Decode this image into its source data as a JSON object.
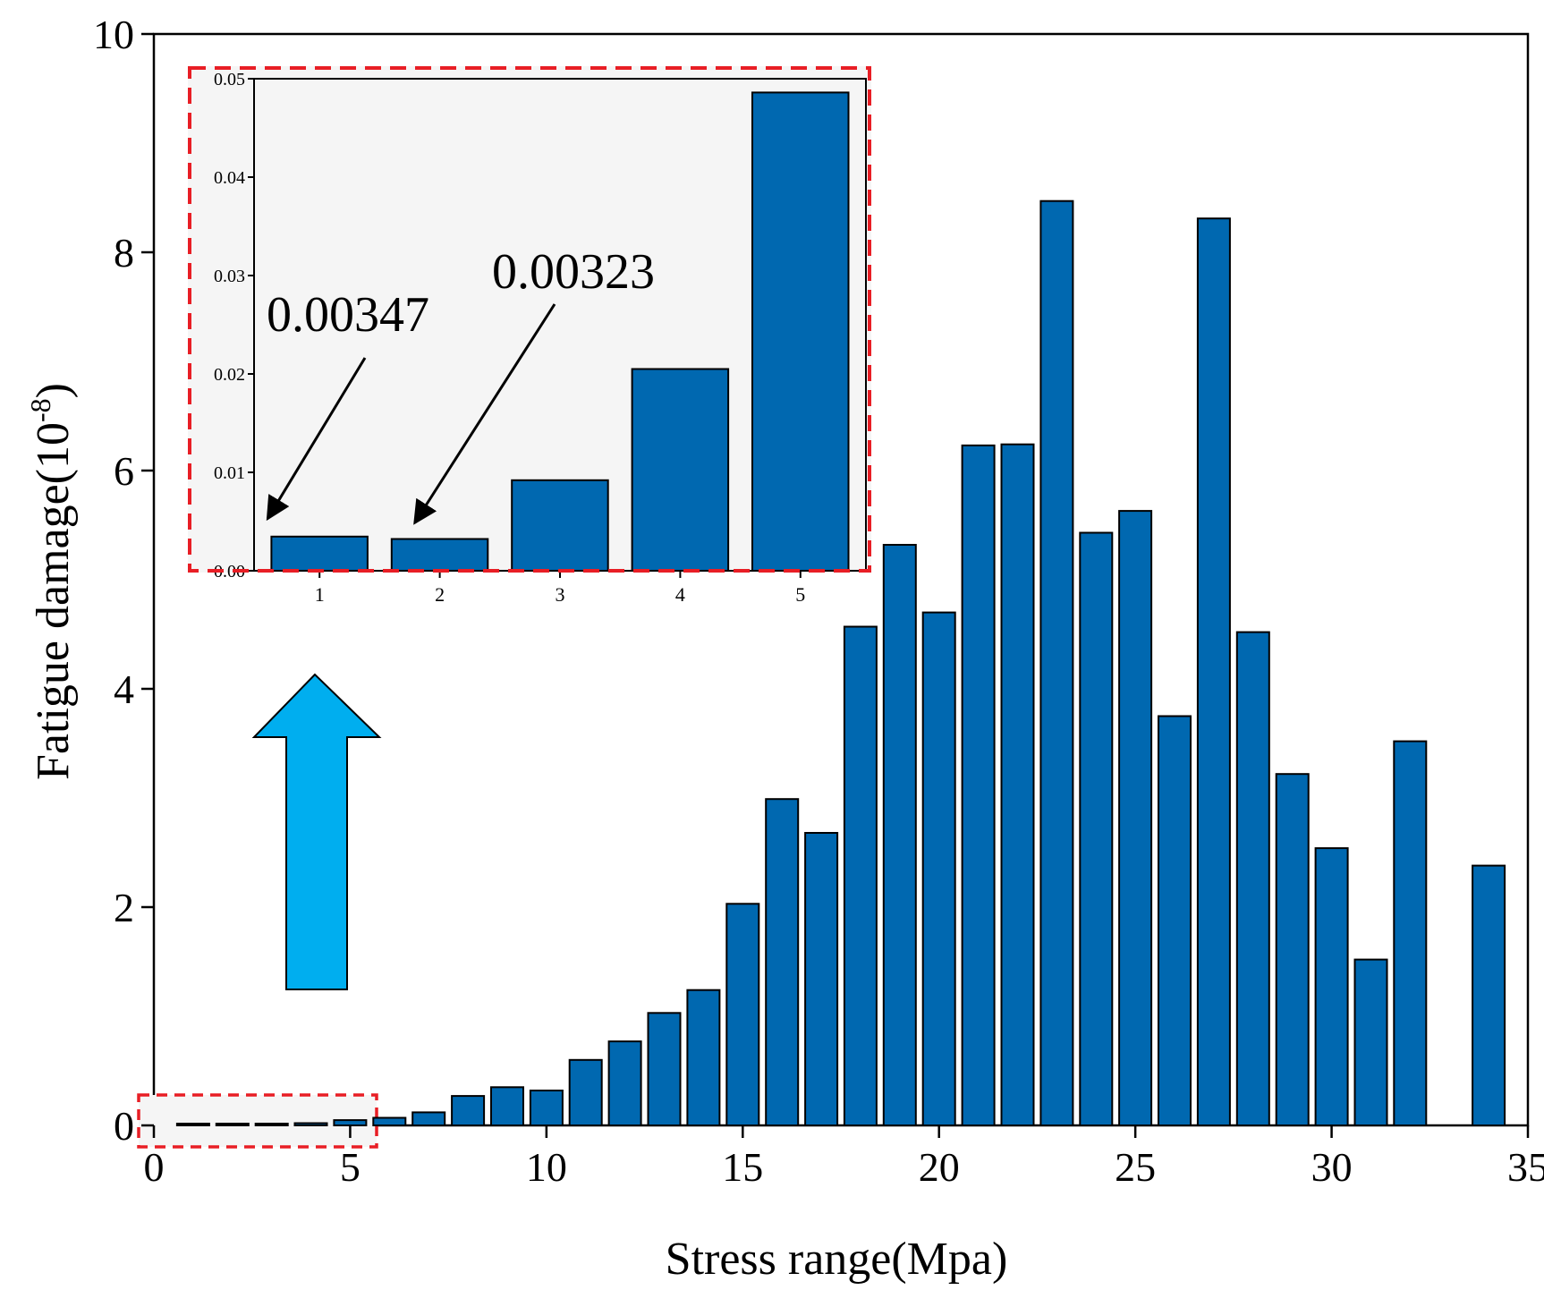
{
  "colors": {
    "bar_fill": "#0068b0",
    "bar_stroke": "#000000",
    "inset_background": "#f5f5f5",
    "highlight_dash": "#e81e25",
    "arrow_fill": "#00aeef",
    "axis": "#000000"
  },
  "chart_data": [
    {
      "id": "main",
      "type": "bar",
      "title": "",
      "xlabel": "Stress range(Mpa)",
      "ylabel": "Fatigue damage(10",
      "ylabel_sup": "-8",
      "ylabel_close": ")",
      "xlim": [
        0,
        35
      ],
      "ylim": [
        0,
        10
      ],
      "xticks": [
        0,
        5,
        10,
        15,
        20,
        25,
        30,
        35
      ],
      "yticks": [
        0,
        2,
        4,
        6,
        8,
        10
      ],
      "grid": false,
      "bar_width": 0.82,
      "x": [
        1,
        2,
        3,
        4,
        5,
        6,
        7,
        8,
        9,
        10,
        11,
        12,
        13,
        14,
        15,
        16,
        17,
        18,
        19,
        20,
        21,
        22,
        23,
        24,
        25,
        26,
        27,
        28,
        29,
        30,
        31,
        32,
        34
      ],
      "values": [
        0.00347,
        0.00323,
        0.0092,
        0.0205,
        0.0486,
        0.07,
        0.12,
        0.27,
        0.35,
        0.32,
        0.6,
        0.77,
        1.03,
        1.24,
        2.03,
        2.99,
        2.68,
        4.57,
        5.32,
        4.7,
        6.23,
        6.24,
        8.47,
        5.43,
        5.63,
        3.75,
        8.31,
        4.52,
        3.22,
        2.54,
        1.52,
        3.52,
        2.38
      ]
    },
    {
      "id": "inset",
      "type": "bar",
      "title": "",
      "xlabel": "",
      "ylabel": "",
      "categories": [
        "1",
        "2",
        "3",
        "4",
        "5"
      ],
      "values": [
        0.00347,
        0.00323,
        0.0092,
        0.0205,
        0.0486
      ],
      "ylim": [
        0,
        0.05
      ],
      "yticks": [
        "0.00",
        "0.01",
        "0.02",
        "0.03",
        "0.04",
        "0.05"
      ],
      "grid": false,
      "annotations": [
        {
          "text": "0.00347",
          "category": "1",
          "value": 0.00347
        },
        {
          "text": "0.00323",
          "category": "2",
          "value": 0.00323
        }
      ]
    }
  ]
}
